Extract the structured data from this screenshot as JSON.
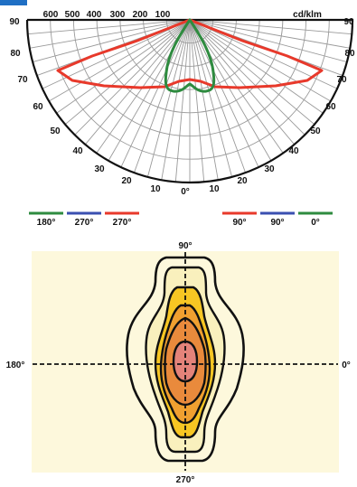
{
  "polar": {
    "top_tick_labels": [
      "600",
      "500",
      "400",
      "300",
      "200",
      "100"
    ],
    "unit": "cd/klm",
    "left_angles": [
      "90",
      "80",
      "70",
      "60",
      "50",
      "40",
      "30",
      "20",
      "10"
    ],
    "right_angles": [
      "90",
      "80",
      "70",
      "60",
      "50",
      "40",
      "30",
      "20",
      "10"
    ],
    "bottom_angle": "0°"
  },
  "legend": {
    "left": [
      {
        "label": "180°",
        "color": "#2e8b3f"
      },
      {
        "label": "270°",
        "color": "#3a4fb0"
      },
      {
        "label": "270°",
        "color": "#e8392b"
      }
    ],
    "right": [
      {
        "label": "90°",
        "color": "#e8392b"
      },
      {
        "label": "90°",
        "color": "#3a4fb0"
      },
      {
        "label": "0°",
        "color": "#2e8b3f"
      }
    ]
  },
  "isolux": {
    "top_label": "90°",
    "left_label": "180°",
    "right_label": "0°",
    "bottom_label": "270°",
    "background": "#fdf8dc"
  },
  "colors": {
    "red_curve": "#e8392b",
    "green_curve": "#2e8b3f",
    "corner_tab": "#1f6fc4"
  }
}
